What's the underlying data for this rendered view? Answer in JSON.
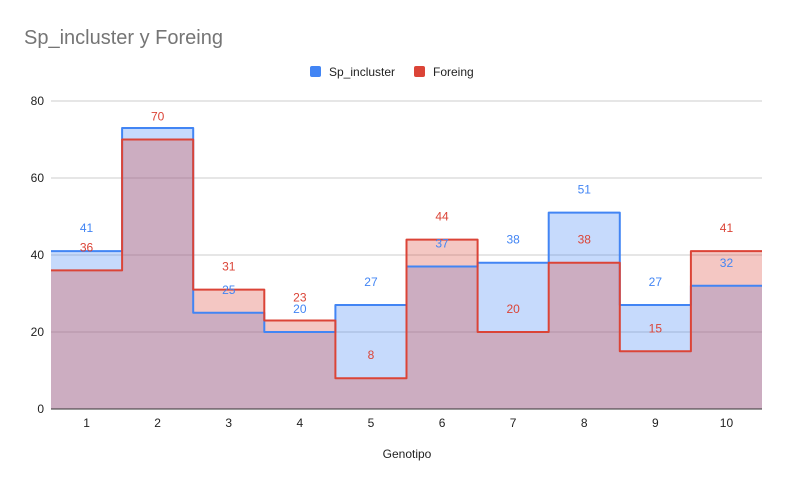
{
  "chart_data": {
    "type": "area",
    "subtype": "stepped",
    "title": "Sp_incluster y Foreing",
    "xlabel": "Genotipo",
    "ylabel": "",
    "categories": [
      "1",
      "2",
      "3",
      "4",
      "5",
      "6",
      "7",
      "8",
      "9",
      "10"
    ],
    "ylim": [
      0,
      80
    ],
    "yticks": [
      "0",
      "20",
      "40",
      "60",
      "80"
    ],
    "grid": true,
    "legend_position": "top",
    "series": [
      {
        "name": "Sp_incluster",
        "values": [
          41,
          73,
          25,
          20,
          27,
          37,
          38,
          51,
          27,
          32
        ],
        "labels": [
          "41",
          "",
          "25",
          "20",
          "27",
          "37",
          "38",
          "51",
          "27",
          "32"
        ],
        "color": "#4285f4",
        "fill": "#c6d9f8"
      },
      {
        "name": "Foreing",
        "values": [
          36,
          70,
          31,
          23,
          8,
          44,
          20,
          38,
          15,
          41
        ],
        "labels": [
          "36",
          "70",
          "31",
          "23",
          "8",
          "44",
          "20",
          "38",
          "15",
          "41"
        ],
        "color": "#db4437",
        "fill": "#f6c6c2"
      }
    ]
  }
}
